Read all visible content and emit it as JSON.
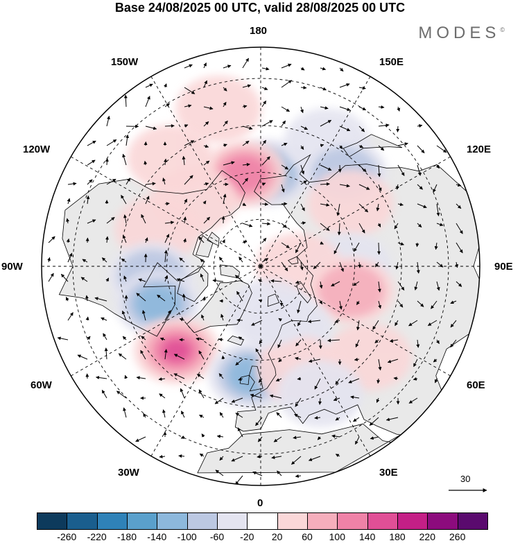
{
  "title": "Base 24/08/2025 00 UTC, valid 28/08/2025 00 UTC",
  "brand": "MODES",
  "brand_mark": "©",
  "longitude_labels": {
    "top": "180",
    "bottom": "0",
    "left": "90W",
    "right": "90E",
    "upper_left_1": "150W",
    "upper_left_2": "120W",
    "upper_right_1": "150E",
    "upper_right_2": "120E",
    "lower_left_1": "60W",
    "lower_left_2": "30W",
    "lower_right_1": "60E",
    "lower_right_2": "30E"
  },
  "vector_reference": "30",
  "colorbar": {
    "ticks": [
      "-260",
      "-220",
      "-180",
      "-140",
      "-100",
      "-60",
      "-20",
      "20",
      "60",
      "100",
      "140",
      "180",
      "220",
      "260"
    ],
    "colors": [
      "#0d3a5c",
      "#1a5e8e",
      "#2f82b8",
      "#5aa0cc",
      "#8db8dc",
      "#bcc8e2",
      "#e4e4f0",
      "#ffffff",
      "#fad7d8",
      "#f5aebc",
      "#ef82a7",
      "#e04f96",
      "#c41f86",
      "#8c0b7d",
      "#5a0a6e"
    ]
  },
  "land_color": "#e9e9e9",
  "anomalies": [
    {
      "sign": "neg",
      "level": 3,
      "center_lon": 175,
      "center_lat": 60
    },
    {
      "sign": "pos",
      "level": 3,
      "center_lon": -170,
      "center_lat": 60
    },
    {
      "sign": "pos",
      "level": 1,
      "center_lon": -165,
      "center_lat": 38
    },
    {
      "sign": "neg",
      "level": 1,
      "center_lon": 152,
      "center_lat": 45
    },
    {
      "sign": "neg",
      "level": 2,
      "center_lon": 138,
      "center_lat": 50
    },
    {
      "sign": "pos",
      "level": 1,
      "center_lon": -135,
      "center_lat": 60
    },
    {
      "sign": "pos",
      "level": 1,
      "center_lon": -140,
      "center_lat": 45
    },
    {
      "sign": "pos",
      "level": 1,
      "center_lon": 125,
      "center_lat": 55
    },
    {
      "sign": "pos",
      "level": 1,
      "center_lon": -110,
      "center_lat": 55
    },
    {
      "sign": "neg",
      "level": 1,
      "center_lon": 90,
      "center_lat": 62
    },
    {
      "sign": "pos",
      "level": 1,
      "center_lon": 90,
      "center_lat": 78
    },
    {
      "sign": "neg",
      "level": 2,
      "center_lon": -85,
      "center_lat": 55
    },
    {
      "sign": "neg",
      "level": 3,
      "center_lon": -70,
      "center_lat": 55
    },
    {
      "sign": "pos",
      "level": 2,
      "center_lon": 75,
      "center_lat": 60
    },
    {
      "sign": "pos",
      "level": 1,
      "center_lon": 50,
      "center_lat": 45
    },
    {
      "sign": "pos",
      "level": 4,
      "center_lon": -45,
      "center_lat": 52
    },
    {
      "sign": "neg",
      "level": 3,
      "center_lon": -5,
      "center_lat": 55
    },
    {
      "sign": "neg",
      "level": 1,
      "center_lon": 25,
      "center_lat": 68
    },
    {
      "sign": "pos",
      "level": 1,
      "center_lon": 20,
      "center_lat": 55
    },
    {
      "sign": "neg",
      "level": 1,
      "center_lon": 10,
      "center_lat": 75
    },
    {
      "sign": "neg",
      "level": 1,
      "center_lon": 25,
      "center_lat": 45
    }
  ]
}
